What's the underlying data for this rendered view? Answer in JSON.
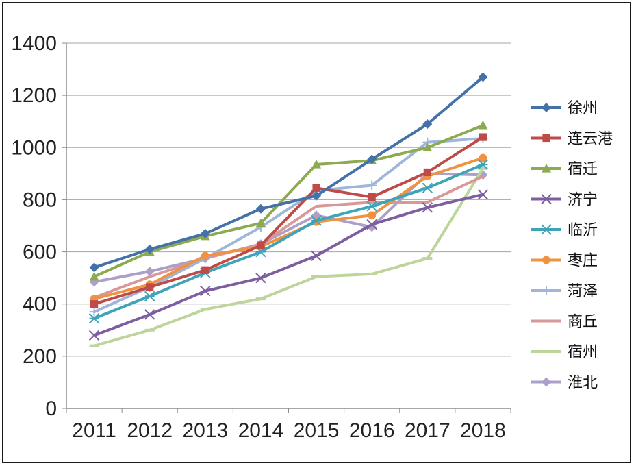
{
  "chart_data": {
    "type": "line",
    "title": "",
    "xlabel": "",
    "ylabel": "",
    "categories": [
      "2011",
      "2012",
      "2013",
      "2014",
      "2015",
      "2016",
      "2017",
      "2018"
    ],
    "ylim": [
      0,
      1400
    ],
    "yticks": [
      "0",
      "200",
      "400",
      "600",
      "800",
      "1000",
      "1200",
      "1400"
    ],
    "grid": true,
    "legend_position": "right",
    "series": [
      {
        "name": "徐州",
        "color": "#4472a8",
        "marker": "diamond",
        "values": [
          540,
          610,
          670,
          765,
          815,
          955,
          1090,
          1270
        ]
      },
      {
        "name": "连云港",
        "color": "#be4b48",
        "marker": "square",
        "values": [
          400,
          465,
          530,
          625,
          845,
          810,
          905,
          1040
        ]
      },
      {
        "name": "宿迁",
        "color": "#8caa4f",
        "marker": "triangle",
        "values": [
          505,
          600,
          660,
          710,
          935,
          950,
          1000,
          1085
        ]
      },
      {
        "name": "济宁",
        "color": "#7d5fa1",
        "marker": "x",
        "values": [
          280,
          360,
          450,
          500,
          585,
          705,
          770,
          820
        ]
      },
      {
        "name": "临沂",
        "color": "#3fa4b8",
        "marker": "star",
        "values": [
          345,
          430,
          520,
          600,
          720,
          775,
          845,
          935
        ]
      },
      {
        "name": "枣庄",
        "color": "#ef9343",
        "marker": "circle",
        "values": [
          420,
          475,
          585,
          620,
          715,
          740,
          890,
          960
        ]
      },
      {
        "name": "菏泽",
        "color": "#9fb5da",
        "marker": "plus",
        "values": [
          370,
          465,
          575,
          695,
          835,
          855,
          1020,
          1035
        ]
      },
      {
        "name": "商丘",
        "color": "#d99897",
        "marker": "none",
        "values": [
          425,
          505,
          575,
          630,
          775,
          790,
          790,
          890
        ]
      },
      {
        "name": "宿州",
        "color": "#bcd59a",
        "marker": "dash",
        "values": [
          240,
          300,
          380,
          420,
          505,
          515,
          575,
          920
        ]
      },
      {
        "name": "淮北",
        "color": "#aca0c8",
        "marker": "diamond",
        "values": [
          485,
          525,
          575,
          630,
          740,
          695,
          900,
          895
        ]
      }
    ]
  }
}
